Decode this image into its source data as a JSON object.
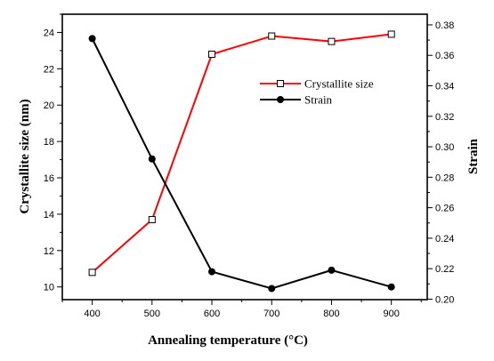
{
  "chart_data": {
    "type": "line",
    "xlabel": "Annealing temperature (°C)",
    "ylabel_left": "Crystallite size (nm)",
    "ylabel_right": "Strain",
    "x": [
      400,
      500,
      600,
      700,
      800,
      900
    ],
    "x_ticks": [
      "400",
      "500",
      "600",
      "700",
      "800",
      "900"
    ],
    "xlim": [
      350,
      960
    ],
    "ylim_left": [
      9.3,
      25.0
    ],
    "ylim_right": [
      0.19967,
      0.38697
    ],
    "y_ticks_left": [
      "10",
      "12",
      "14",
      "16",
      "18",
      "20",
      "22",
      "24"
    ],
    "y_ticks_right": [
      "0.20",
      "0.22",
      "0.24",
      "0.26",
      "0.28",
      "0.30",
      "0.32",
      "0.34",
      "0.36",
      "0.38"
    ],
    "series": [
      {
        "name": "Crystallite size",
        "axis": "left",
        "color": "#ff0000",
        "marker": "open-square",
        "values": [
          10.8,
          13.7,
          22.8,
          23.8,
          23.5,
          23.9
        ]
      },
      {
        "name": "Strain",
        "axis": "right",
        "color": "#000000",
        "marker": "filled-circle",
        "values": [
          0.371,
          0.292,
          0.218,
          0.207,
          0.219,
          0.208
        ]
      }
    ],
    "legend_position": "top-right inside plot",
    "grid": false
  }
}
